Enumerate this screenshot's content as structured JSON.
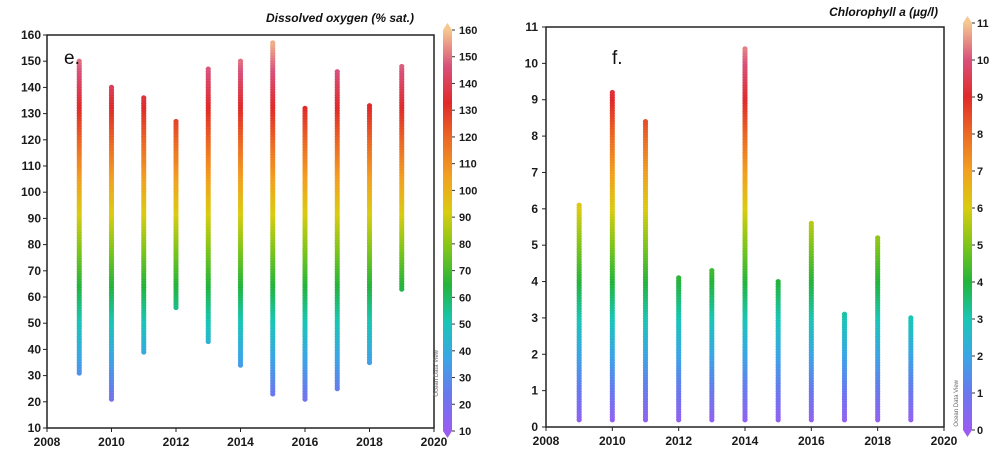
{
  "charts": [
    {
      "type": "scatter",
      "panel_label": "e.",
      "colorbar_title": "Dissolved oxygen (% sat.)",
      "watermark": "Ocean Data View",
      "xlim": [
        2008,
        2020
      ],
      "xticks": [
        2008,
        2010,
        2012,
        2014,
        2016,
        2018,
        2020
      ],
      "ylim": [
        10,
        160
      ],
      "yticks": [
        10,
        20,
        30,
        40,
        50,
        60,
        70,
        80,
        90,
        100,
        110,
        120,
        130,
        140,
        150,
        160
      ],
      "colorbar_range": [
        10,
        160
      ],
      "colorbar_ticks": [
        10,
        20,
        30,
        40,
        50,
        60,
        70,
        80,
        90,
        100,
        110,
        120,
        130,
        140,
        150,
        160
      ],
      "columns": [
        {
          "x": 2009,
          "min": 31,
          "max": 150
        },
        {
          "x": 2010,
          "min": 21,
          "max": 140
        },
        {
          "x": 2011,
          "min": 39,
          "max": 136
        },
        {
          "x": 2012,
          "min": 56,
          "max": 127
        },
        {
          "x": 2013,
          "min": 43,
          "max": 147
        },
        {
          "x": 2014,
          "min": 34,
          "max": 150
        },
        {
          "x": 2015,
          "min": 23,
          "max": 157
        },
        {
          "x": 2016,
          "min": 21,
          "max": 132
        },
        {
          "x": 2017,
          "min": 25,
          "max": 146
        },
        {
          "x": 2018,
          "min": 35,
          "max": 133
        },
        {
          "x": 2019,
          "min": 63,
          "max": 148
        }
      ]
    },
    {
      "type": "scatter",
      "panel_label": "f.",
      "colorbar_title": "Chlorophyll a  (µg/l)",
      "watermark": "Ocean Data View",
      "xlim": [
        2008,
        2020
      ],
      "xticks": [
        2008,
        2010,
        2012,
        2014,
        2016,
        2018,
        2020
      ],
      "ylim": [
        0,
        11
      ],
      "yticks": [
        0,
        1,
        2,
        3,
        4,
        5,
        6,
        7,
        8,
        9,
        10,
        11
      ],
      "colorbar_range": [
        0,
        11
      ],
      "colorbar_ticks": [
        0,
        1,
        2,
        3,
        4,
        5,
        6,
        7,
        8,
        9,
        10,
        11
      ],
      "columns": [
        {
          "x": 2009,
          "min": 0.2,
          "max": 6.1
        },
        {
          "x": 2010,
          "min": 0.2,
          "max": 9.2
        },
        {
          "x": 2011,
          "min": 0.2,
          "max": 8.4
        },
        {
          "x": 2012,
          "min": 0.2,
          "max": 4.1
        },
        {
          "x": 2013,
          "min": 0.2,
          "max": 4.3
        },
        {
          "x": 2014,
          "min": 0.2,
          "max": 10.4
        },
        {
          "x": 2015,
          "min": 0.2,
          "max": 4.0
        },
        {
          "x": 2016,
          "min": 0.2,
          "max": 5.6
        },
        {
          "x": 2017,
          "min": 0.2,
          "max": 3.1
        },
        {
          "x": 2018,
          "min": 0.2,
          "max": 5.2
        },
        {
          "x": 2019,
          "min": 0.2,
          "max": 3.0
        }
      ]
    }
  ],
  "colormap": [
    "#9b5cf2",
    "#6a78ee",
    "#3aa6e6",
    "#19c6b5",
    "#23b43c",
    "#7ec51a",
    "#d9cc10",
    "#f2a020",
    "#ec6a25",
    "#e02a2a",
    "#d8507a",
    "#f4c890"
  ]
}
